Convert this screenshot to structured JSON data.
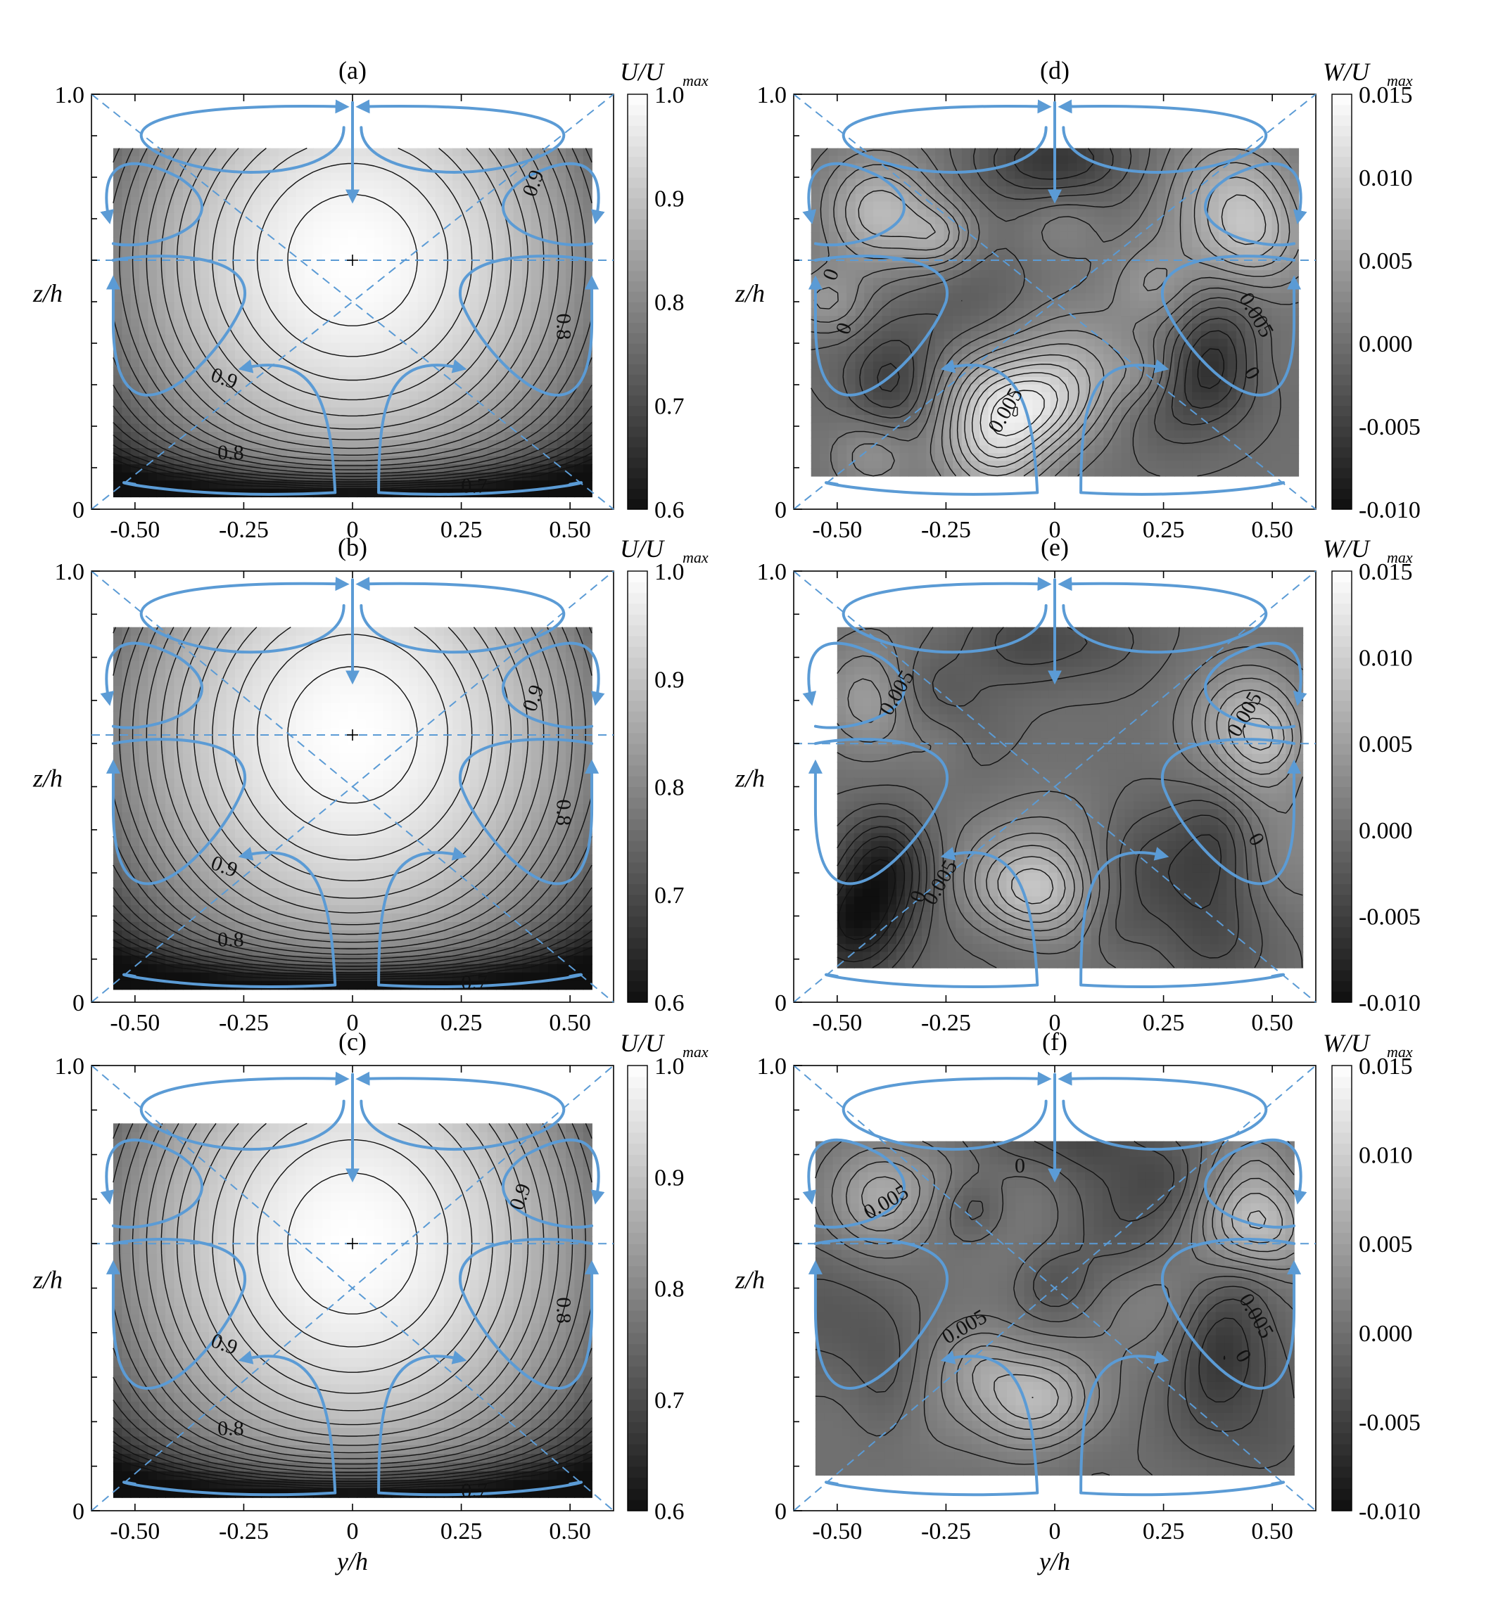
{
  "figure": {
    "background": "#ffffff",
    "flow_line_color": "#5b9bd5",
    "contour_color": "#111111"
  },
  "chart_data": [
    {
      "type": "heatmap",
      "id": "a",
      "title": "(a)",
      "xlabel": "",
      "ylabel": "z/h",
      "xlim": [
        -0.6,
        0.6
      ],
      "ylim": [
        0,
        1.0
      ],
      "x_ticks": [
        "-0.50",
        "-0.25",
        "0",
        "0.25",
        "0.50"
      ],
      "y_ticks": [
        "0",
        "1.0"
      ],
      "data_extent": {
        "x": [
          -0.55,
          0.55
        ],
        "y": [
          0.03,
          0.87
        ]
      },
      "colorbar": {
        "label": "U/U",
        "label_sub": "max",
        "range": [
          0.6,
          1.0
        ],
        "ticks": [
          "0.6",
          "0.7",
          "0.8",
          "0.9",
          "1.0"
        ]
      },
      "field": {
        "kind": "U",
        "center": [
          0.0,
          0.6
        ],
        "levels": 20
      },
      "contour_labels": [
        {
          "text": "0.9",
          "x": 0.43,
          "y": 0.78,
          "rotate": -70
        },
        {
          "text": "0.8",
          "x": 0.47,
          "y": 0.44,
          "rotate": 90
        },
        {
          "text": "0.9",
          "x": -0.3,
          "y": 0.3,
          "rotate": 20
        },
        {
          "text": "0.8",
          "x": -0.28,
          "y": 0.12,
          "rotate": 0
        },
        {
          "text": "0.7",
          "x": 0.28,
          "y": 0.04,
          "rotate": 0
        }
      ]
    },
    {
      "type": "heatmap",
      "id": "b",
      "title": "(b)",
      "xlabel": "",
      "ylabel": "z/h",
      "xlim": [
        -0.6,
        0.6
      ],
      "ylim": [
        0,
        1.0
      ],
      "x_ticks": [
        "-0.50",
        "-0.25",
        "0",
        "0.25",
        "0.50"
      ],
      "y_ticks": [
        "0",
        "1.0"
      ],
      "data_extent": {
        "x": [
          -0.55,
          0.55
        ],
        "y": [
          0.03,
          0.87
        ]
      },
      "colorbar": {
        "label": "U/U",
        "label_sub": "max",
        "range": [
          0.6,
          1.0
        ],
        "ticks": [
          "0.6",
          "0.7",
          "0.8",
          "0.9",
          "1.0"
        ]
      },
      "field": {
        "kind": "U",
        "center": [
          0.0,
          0.62
        ],
        "levels": 20
      },
      "contour_labels": [
        {
          "text": "0.9",
          "x": 0.43,
          "y": 0.7,
          "rotate": -70
        },
        {
          "text": "0.8",
          "x": 0.47,
          "y": 0.44,
          "rotate": 90
        },
        {
          "text": "0.9",
          "x": -0.3,
          "y": 0.3,
          "rotate": 20
        },
        {
          "text": "0.8",
          "x": -0.28,
          "y": 0.13,
          "rotate": 0
        },
        {
          "text": "0.7",
          "x": 0.28,
          "y": 0.03,
          "rotate": 0
        }
      ]
    },
    {
      "type": "heatmap",
      "id": "c",
      "title": "(c)",
      "xlabel": "y/h",
      "ylabel": "z/h",
      "xlim": [
        -0.6,
        0.6
      ],
      "ylim": [
        0,
        1.0
      ],
      "x_ticks": [
        "-0.50",
        "-0.25",
        "0",
        "0.25",
        "0.50"
      ],
      "y_ticks": [
        "0",
        "1.0"
      ],
      "data_extent": {
        "x": [
          -0.55,
          0.55
        ],
        "y": [
          0.03,
          0.87
        ]
      },
      "colorbar": {
        "label": "U/U",
        "label_sub": "max",
        "range": [
          0.6,
          1.0
        ],
        "ticks": [
          "0.6",
          "0.7",
          "0.8",
          "0.9",
          "1.0"
        ]
      },
      "field": {
        "kind": "U",
        "center": [
          0.0,
          0.6
        ],
        "levels": 20
      },
      "contour_labels": [
        {
          "text": "0.9",
          "x": 0.4,
          "y": 0.7,
          "rotate": -70
        },
        {
          "text": "0.8",
          "x": 0.47,
          "y": 0.45,
          "rotate": 90
        },
        {
          "text": "0.9",
          "x": -0.3,
          "y": 0.36,
          "rotate": 20
        },
        {
          "text": "0.8",
          "x": -0.28,
          "y": 0.17,
          "rotate": 0
        },
        {
          "text": "0.7",
          "x": 0.28,
          "y": 0.03,
          "rotate": 0
        }
      ]
    },
    {
      "type": "heatmap",
      "id": "d",
      "title": "(d)",
      "xlabel": "",
      "ylabel": "z/h",
      "xlim": [
        -0.6,
        0.6
      ],
      "ylim": [
        0,
        1.0
      ],
      "x_ticks": [
        "-0.50",
        "-0.25",
        "0",
        "0.25",
        "0.50"
      ],
      "y_ticks": [
        "0",
        "1.0"
      ],
      "data_extent": {
        "x": [
          -0.56,
          0.56
        ],
        "y": [
          0.08,
          0.87
        ]
      },
      "colorbar": {
        "label": "W/U",
        "label_sub": "max",
        "range": [
          -0.01,
          0.015
        ],
        "ticks": [
          "-0.010",
          "-0.005",
          "0.000",
          "0.005",
          "0.010",
          "0.015"
        ]
      },
      "field": {
        "kind": "W",
        "seed": 1,
        "levels": 18
      },
      "contour_labels": [
        {
          "text": "0",
          "x": -0.5,
          "y": 0.56,
          "rotate": -70
        },
        {
          "text": "0",
          "x": -0.47,
          "y": 0.43,
          "rotate": -70
        },
        {
          "text": "0.005",
          "x": -0.1,
          "y": 0.23,
          "rotate": -60
        },
        {
          "text": "0.005",
          "x": 0.45,
          "y": 0.46,
          "rotate": 60
        },
        {
          "text": "0",
          "x": 0.44,
          "y": 0.32,
          "rotate": 60
        }
      ]
    },
    {
      "type": "heatmap",
      "id": "e",
      "title": "(e)",
      "xlabel": "",
      "ylabel": "z/h",
      "xlim": [
        -0.6,
        0.6
      ],
      "ylim": [
        0,
        1.0
      ],
      "x_ticks": [
        "-0.50",
        "-0.25",
        "0",
        "0.25",
        "0.50"
      ],
      "y_ticks": [
        "0",
        "1.0"
      ],
      "data_extent": {
        "x": [
          -0.5,
          0.57
        ],
        "y": [
          0.08,
          0.87
        ]
      },
      "colorbar": {
        "label": "W/U",
        "label_sub": "max",
        "range": [
          -0.01,
          0.015
        ],
        "ticks": [
          "-0.010",
          "-0.005",
          "0.000",
          "0.005",
          "0.010",
          "0.015"
        ]
      },
      "field": {
        "kind": "W",
        "seed": 2,
        "levels": 18
      },
      "contour_labels": [
        {
          "text": "0.005",
          "x": -0.35,
          "y": 0.71,
          "rotate": -60
        },
        {
          "text": "0.005",
          "x": 0.45,
          "y": 0.66,
          "rotate": -60
        },
        {
          "text": "0.005",
          "x": -0.25,
          "y": 0.27,
          "rotate": -60
        },
        {
          "text": "0",
          "x": -0.3,
          "y": 0.24,
          "rotate": -70
        },
        {
          "text": "0",
          "x": 0.45,
          "y": 0.37,
          "rotate": 60
        }
      ]
    },
    {
      "type": "heatmap",
      "id": "f",
      "title": "(f)",
      "xlabel": "y/h",
      "ylabel": "z/h",
      "xlim": [
        -0.6,
        0.6
      ],
      "ylim": [
        0,
        1.0
      ],
      "x_ticks": [
        "-0.50",
        "-0.25",
        "0",
        "0.25",
        "0.50"
      ],
      "y_ticks": [
        "0",
        "1.0"
      ],
      "data_extent": {
        "x": [
          -0.55,
          0.55
        ],
        "y": [
          0.08,
          0.83
        ]
      },
      "colorbar": {
        "label": "W/U",
        "label_sub": "max",
        "range": [
          -0.01,
          0.015
        ],
        "ticks": [
          "-0.010",
          "-0.005",
          "0.000",
          "0.005",
          "0.010",
          "0.015"
        ]
      },
      "field": {
        "kind": "W",
        "seed": 3,
        "levels": 18
      },
      "contour_labels": [
        {
          "text": "0",
          "x": -0.08,
          "y": 0.76,
          "rotate": 0
        },
        {
          "text": "0.005",
          "x": -0.38,
          "y": 0.68,
          "rotate": -30
        },
        {
          "text": "0.005",
          "x": -0.2,
          "y": 0.4,
          "rotate": -30
        },
        {
          "text": "0.005",
          "x": 0.45,
          "y": 0.43,
          "rotate": 60
        },
        {
          "text": "0",
          "x": 0.42,
          "y": 0.34,
          "rotate": 60
        }
      ]
    }
  ]
}
